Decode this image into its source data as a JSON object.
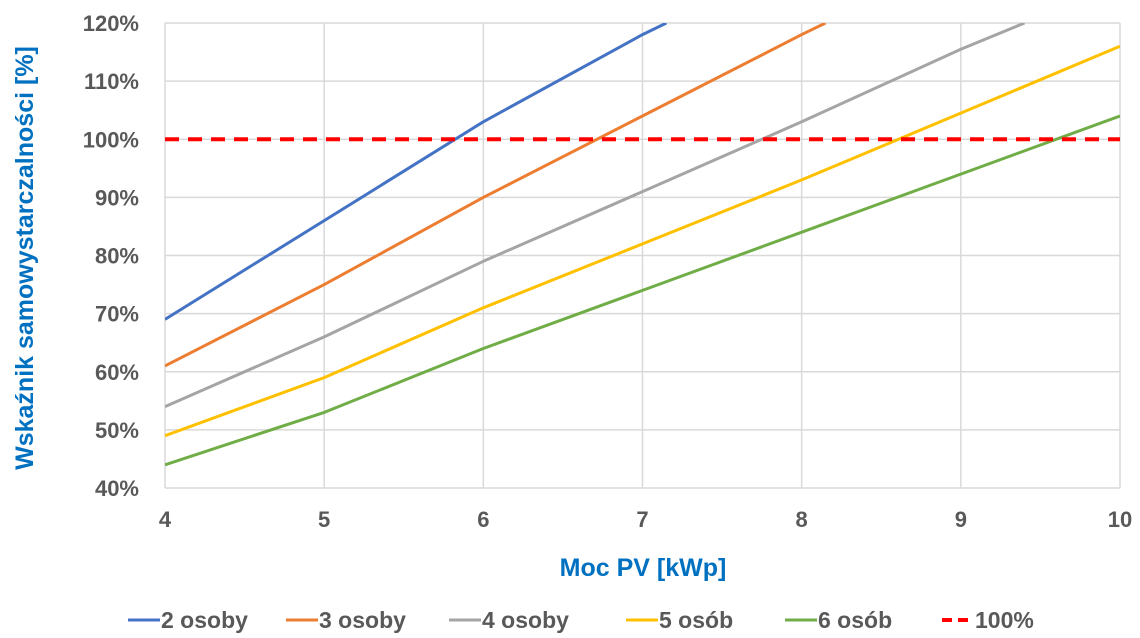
{
  "chart_data": {
    "type": "line",
    "xlabel": "Moc PV [kWp]",
    "ylabel": "Wskaźnik samowystarczalności [%]",
    "xlim": [
      4,
      10
    ],
    "ylim": [
      40,
      120
    ],
    "x_ticks": [
      4,
      5,
      6,
      7,
      8,
      9,
      10
    ],
    "y_ticks": [
      40,
      50,
      60,
      70,
      80,
      90,
      100,
      110,
      120
    ],
    "y_tick_labels": [
      "40%",
      "50%",
      "60%",
      "70%",
      "80%",
      "90%",
      "100%",
      "110%",
      "120%"
    ],
    "grid": true,
    "legend_position": "bottom",
    "axis_title_color": "#0070C0",
    "series": [
      {
        "name": "2 osoby",
        "color": "#4472C4",
        "dashed": false,
        "x": [
          4,
          5,
          6,
          7,
          7.15
        ],
        "y": [
          69,
          86,
          103,
          118,
          120
        ]
      },
      {
        "name": "3 osoby",
        "color": "#ED7D31",
        "dashed": false,
        "x": [
          4,
          5,
          6,
          7,
          8,
          8.15
        ],
        "y": [
          61,
          75,
          90,
          104,
          118,
          120
        ]
      },
      {
        "name": "4 osoby",
        "color": "#A5A5A5",
        "dashed": false,
        "x": [
          4,
          5,
          6,
          7,
          8,
          9,
          9.4
        ],
        "y": [
          54,
          66,
          79,
          91,
          103,
          115.5,
          120
        ]
      },
      {
        "name": "5 osób",
        "color": "#FFC000",
        "dashed": false,
        "x": [
          4,
          5,
          6,
          7,
          8,
          9,
          10
        ],
        "y": [
          49,
          59,
          71,
          82,
          93,
          104.5,
          116
        ]
      },
      {
        "name": "6 osób",
        "color": "#70AD47",
        "dashed": false,
        "x": [
          4,
          5,
          6,
          7,
          8,
          9,
          10
        ],
        "y": [
          44,
          53,
          64,
          74,
          84,
          94,
          104
        ]
      },
      {
        "name": "100%",
        "color": "#FF0000",
        "dashed": true,
        "x": [
          4,
          10
        ],
        "y": [
          100,
          100
        ]
      }
    ]
  }
}
